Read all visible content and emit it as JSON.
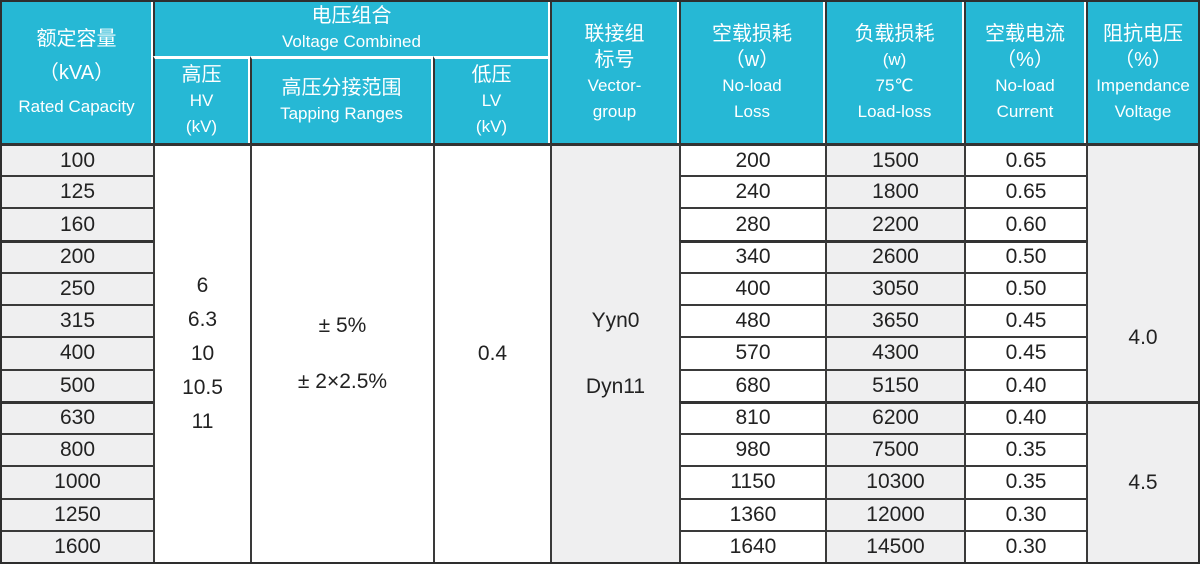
{
  "colors": {
    "header_teal": "#26b8d5",
    "row_gray": "#efeff0",
    "border_dark": "#333333",
    "header_text": "#ffffff",
    "body_text": "#222222"
  },
  "header": {
    "capacity": [
      "额定容量",
      "（kVA）",
      "Rated Capacity"
    ],
    "voltage_combined": [
      "电压组合",
      "Voltage Combined"
    ],
    "hv": [
      "高压",
      "HV",
      "(kV)"
    ],
    "tapping": [
      "高压分接范围",
      "Tapping Ranges"
    ],
    "lv": [
      "低压",
      "LV",
      "(kV)"
    ],
    "vector_group": [
      "联接组",
      "标号",
      "Vector-",
      "group"
    ],
    "no_load_loss": [
      "空载损耗",
      "（w）",
      "No-load",
      "Loss"
    ],
    "load_loss": [
      "负载损耗",
      "(w)",
      "75℃",
      "Load-loss"
    ],
    "no_load_current": [
      "空载电流",
      "（%）",
      "No-load",
      "Current"
    ],
    "impedance": [
      "阻抗电压",
      "（%）",
      "Impendance",
      "Voltage"
    ]
  },
  "merged": {
    "hv_values": [
      "6",
      "6.3",
      "10",
      "10.5",
      "11"
    ],
    "tapping_values": [
      "± 5%",
      "± 2×2.5%"
    ],
    "lv_value": "0.4",
    "vector_values": [
      "Yyn0",
      "Dyn11"
    ],
    "impedance_top": "4.0",
    "impedance_bottom": "4.5"
  },
  "rows": [
    {
      "capacity": "100",
      "no_load_loss": "200",
      "load_loss": "1500",
      "current": "0.65"
    },
    {
      "capacity": "125",
      "no_load_loss": "240",
      "load_loss": "1800",
      "current": "0.65"
    },
    {
      "capacity": "160",
      "no_load_loss": "280",
      "load_loss": "2200",
      "current": "0.60"
    },
    {
      "capacity": "200",
      "no_load_loss": "340",
      "load_loss": "2600",
      "current": "0.50"
    },
    {
      "capacity": "250",
      "no_load_loss": "400",
      "load_loss": "3050",
      "current": "0.50"
    },
    {
      "capacity": "315",
      "no_load_loss": "480",
      "load_loss": "3650",
      "current": "0.45"
    },
    {
      "capacity": "400",
      "no_load_loss": "570",
      "load_loss": "4300",
      "current": "0.45"
    },
    {
      "capacity": "500",
      "no_load_loss": "680",
      "load_loss": "5150",
      "current": "0.40"
    },
    {
      "capacity": "630",
      "no_load_loss": "810",
      "load_loss": "6200",
      "current": "0.40"
    },
    {
      "capacity": "800",
      "no_load_loss": "980",
      "load_loss": "7500",
      "current": "0.35"
    },
    {
      "capacity": "1000",
      "no_load_loss": "1150",
      "load_loss": "10300",
      "current": "0.35"
    },
    {
      "capacity": "1250",
      "no_load_loss": "1360",
      "load_loss": "12000",
      "current": "0.30"
    },
    {
      "capacity": "1600",
      "no_load_loss": "1640",
      "load_loss": "14500",
      "current": "0.30"
    }
  ]
}
